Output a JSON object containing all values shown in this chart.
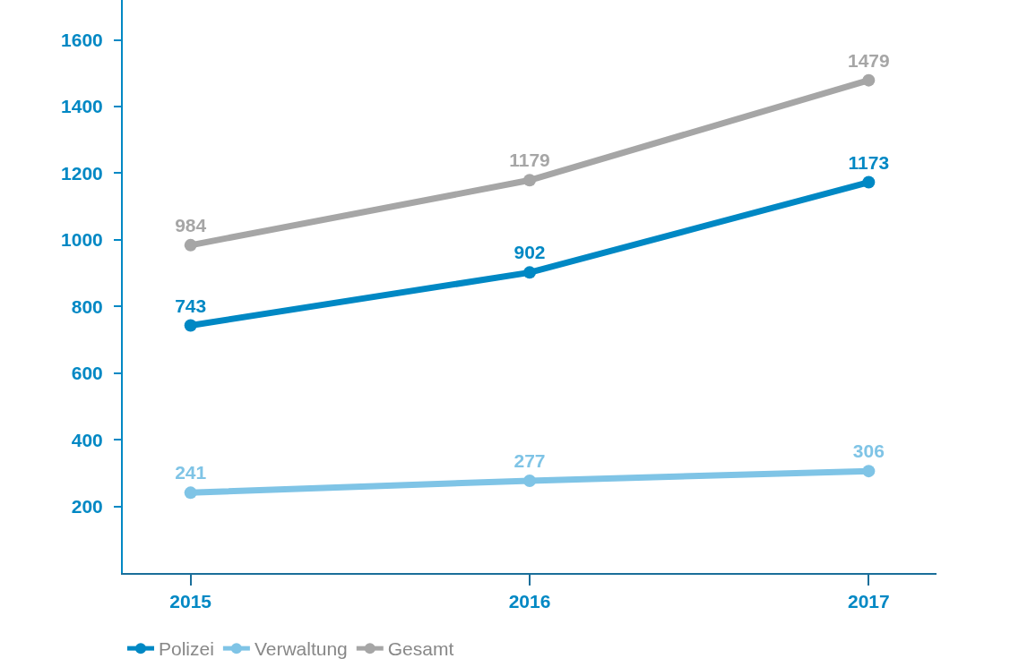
{
  "chart_data": {
    "type": "line",
    "categories": [
      "2015",
      "2016",
      "2017"
    ],
    "series": [
      {
        "name": "Polizei",
        "color": "#0088c4",
        "values": [
          743,
          902,
          1173
        ]
      },
      {
        "name": "Verwaltung",
        "color": "#7fc4e6",
        "values": [
          241,
          277,
          306
        ]
      },
      {
        "name": "Gesamt",
        "color": "#a6a6a6",
        "values": [
          984,
          1179,
          1479
        ]
      }
    ],
    "ylim": [
      0,
      1720
    ],
    "yticks": [
      200,
      400,
      600,
      800,
      1000,
      1200,
      1400,
      1600
    ],
    "grid": false,
    "legend": "bottom left",
    "marker": "circle",
    "line_style": "solid",
    "data_labels": true
  }
}
